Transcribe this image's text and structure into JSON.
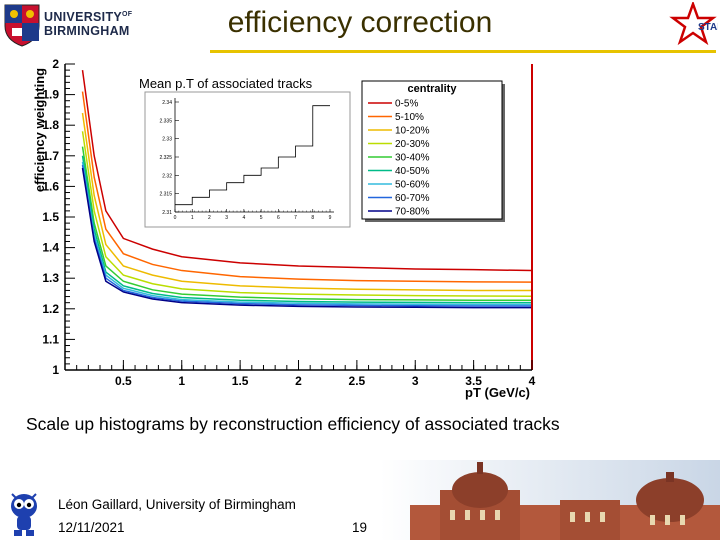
{
  "header": {
    "university_line1": "UNIVERSITY",
    "university_of": "OF",
    "university_line2": "BIRMINGHAM",
    "title": "efficiency correction",
    "star_logo_text": "STAR"
  },
  "chart_data": {
    "type": "line",
    "title": "",
    "xlabel": "pT (GeV/c)",
    "ylabel": "efficiency weighting",
    "xlim": [
      0,
      4
    ],
    "ylim": [
      1,
      2
    ],
    "x_ticks": [
      "0.5",
      "1",
      "1.5",
      "2",
      "2.5",
      "3",
      "3.5",
      "4"
    ],
    "y_ticks": [
      "1",
      "1.1",
      "1.2",
      "1.3",
      "1.4",
      "1.5",
      "1.6",
      "1.7",
      "1.8",
      "1.9",
      "2"
    ],
    "x": [
      0.15,
      0.25,
      0.35,
      0.5,
      0.75,
      1,
      1.5,
      2,
      2.5,
      3,
      3.5,
      4
    ],
    "legend_title": "centrality",
    "series": [
      {
        "name": "0-5%",
        "color": "#cc0000",
        "values": [
          1.98,
          1.7,
          1.52,
          1.43,
          1.395,
          1.37,
          1.35,
          1.34,
          1.335,
          1.33,
          1.328,
          1.325
        ]
      },
      {
        "name": "5-10%",
        "color": "#ff6600",
        "values": [
          1.91,
          1.63,
          1.46,
          1.38,
          1.345,
          1.325,
          1.305,
          1.297,
          1.292,
          1.29,
          1.288,
          1.287
        ]
      },
      {
        "name": "10-20%",
        "color": "#eebb00",
        "values": [
          1.84,
          1.57,
          1.41,
          1.34,
          1.31,
          1.29,
          1.275,
          1.268,
          1.264,
          1.262,
          1.26,
          1.26
        ]
      },
      {
        "name": "20-30%",
        "color": "#bbdd00",
        "values": [
          1.78,
          1.52,
          1.37,
          1.31,
          1.282,
          1.265,
          1.253,
          1.248,
          1.245,
          1.243,
          1.242,
          1.241
        ]
      },
      {
        "name": "30-40%",
        "color": "#33cc33",
        "values": [
          1.73,
          1.48,
          1.34,
          1.29,
          1.262,
          1.248,
          1.238,
          1.233,
          1.23,
          1.229,
          1.228,
          1.228
        ]
      },
      {
        "name": "40-50%",
        "color": "#00bb88",
        "values": [
          1.7,
          1.46,
          1.32,
          1.275,
          1.25,
          1.237,
          1.228,
          1.224,
          1.222,
          1.221,
          1.22,
          1.22
        ]
      },
      {
        "name": "50-60%",
        "color": "#33bbdd",
        "values": [
          1.68,
          1.44,
          1.31,
          1.267,
          1.243,
          1.23,
          1.222,
          1.218,
          1.216,
          1.215,
          1.214,
          1.214
        ]
      },
      {
        "name": "60-70%",
        "color": "#2266dd",
        "values": [
          1.67,
          1.43,
          1.3,
          1.26,
          1.237,
          1.225,
          1.217,
          1.213,
          1.211,
          1.21,
          1.209,
          1.209
        ]
      },
      {
        "name": "70-80%",
        "color": "#000088",
        "values": [
          1.66,
          1.42,
          1.29,
          1.255,
          1.232,
          1.22,
          1.212,
          1.208,
          1.206,
          1.205,
          1.204,
          1.204
        ]
      }
    ],
    "annotation": "Mean p.T of associated tracks",
    "inset": {
      "type": "step",
      "x_ticks": [
        "0",
        "1",
        "2",
        "3",
        "4",
        "5",
        "6",
        "7",
        "8",
        "9"
      ],
      "y_ticks": [
        "2.34",
        "2.335",
        "2.33",
        "2.325",
        "2.32",
        "2.315",
        "2.31"
      ],
      "x": [
        0,
        1,
        2,
        3,
        4,
        5,
        6,
        7,
        8,
        9
      ],
      "values": [
        2.312,
        2.314,
        2.316,
        2.318,
        2.32,
        2.322,
        2.325,
        2.328,
        2.339,
        2.339
      ]
    }
  },
  "caption": "Scale up histograms by reconstruction efficiency of associated tracks",
  "footer": {
    "author": "Léon Gaillard, University of Birmingham",
    "date": "12/11/2021",
    "page": "19"
  }
}
